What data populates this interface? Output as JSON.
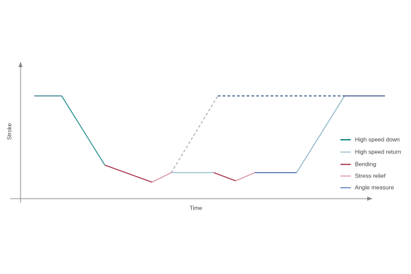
{
  "axes": {
    "y_label": "Stroke",
    "x_label": "Time"
  },
  "legend": [
    {
      "label": "High speed down"
    },
    {
      "label": "High speed return"
    },
    {
      "label": "Bending"
    },
    {
      "label": "Stress relief"
    },
    {
      "label": "Angle measure"
    }
  ]
}
